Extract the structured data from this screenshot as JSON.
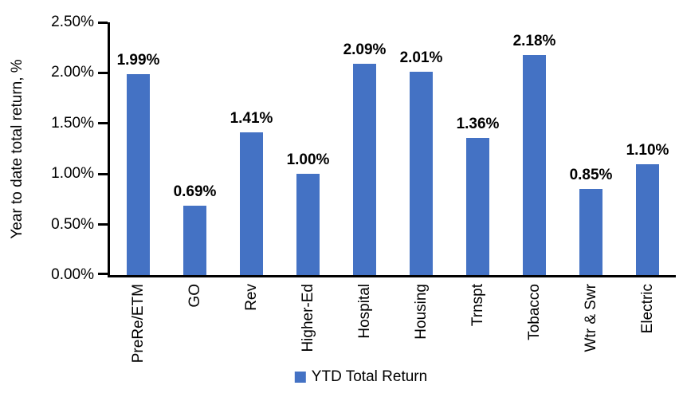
{
  "chart_data": {
    "type": "bar",
    "title": "",
    "xlabel": "",
    "ylabel": "Year to date total return, %",
    "categories": [
      "PreRe/ETM",
      "GO",
      "Rev",
      "Higher-Ed",
      "Hospital",
      "Housing",
      "Trnspt",
      "Tobacco",
      "Wtr & Swr",
      "Electric"
    ],
    "values": [
      1.99,
      0.69,
      1.41,
      1.0,
      2.09,
      2.01,
      1.36,
      2.18,
      0.85,
      1.1
    ],
    "value_labels": [
      "1.99%",
      "0.69%",
      "1.41%",
      "1.00%",
      "2.09%",
      "2.01%",
      "1.36%",
      "2.18%",
      "0.85%",
      "1.10%"
    ],
    "ylim": [
      0,
      2.5
    ],
    "yticks": [
      {
        "value": 2.5,
        "label": "2.50%"
      },
      {
        "value": 2.0,
        "label": "2.00%"
      },
      {
        "value": 1.5,
        "label": "1.50%"
      },
      {
        "value": 1.0,
        "label": "1.00%"
      },
      {
        "value": 0.5,
        "label": "0.50%"
      },
      {
        "value": 0.0,
        "label": "0.00%"
      }
    ],
    "grid": false,
    "legend_position": "bottom",
    "legend": {
      "entries": [
        {
          "label": "YTD Total Return",
          "color": "#4472C4"
        }
      ]
    },
    "bar_color": "#4472C4",
    "axis_color": "#000000",
    "text_color": "#000000",
    "background_color": "#FFFFFF"
  }
}
